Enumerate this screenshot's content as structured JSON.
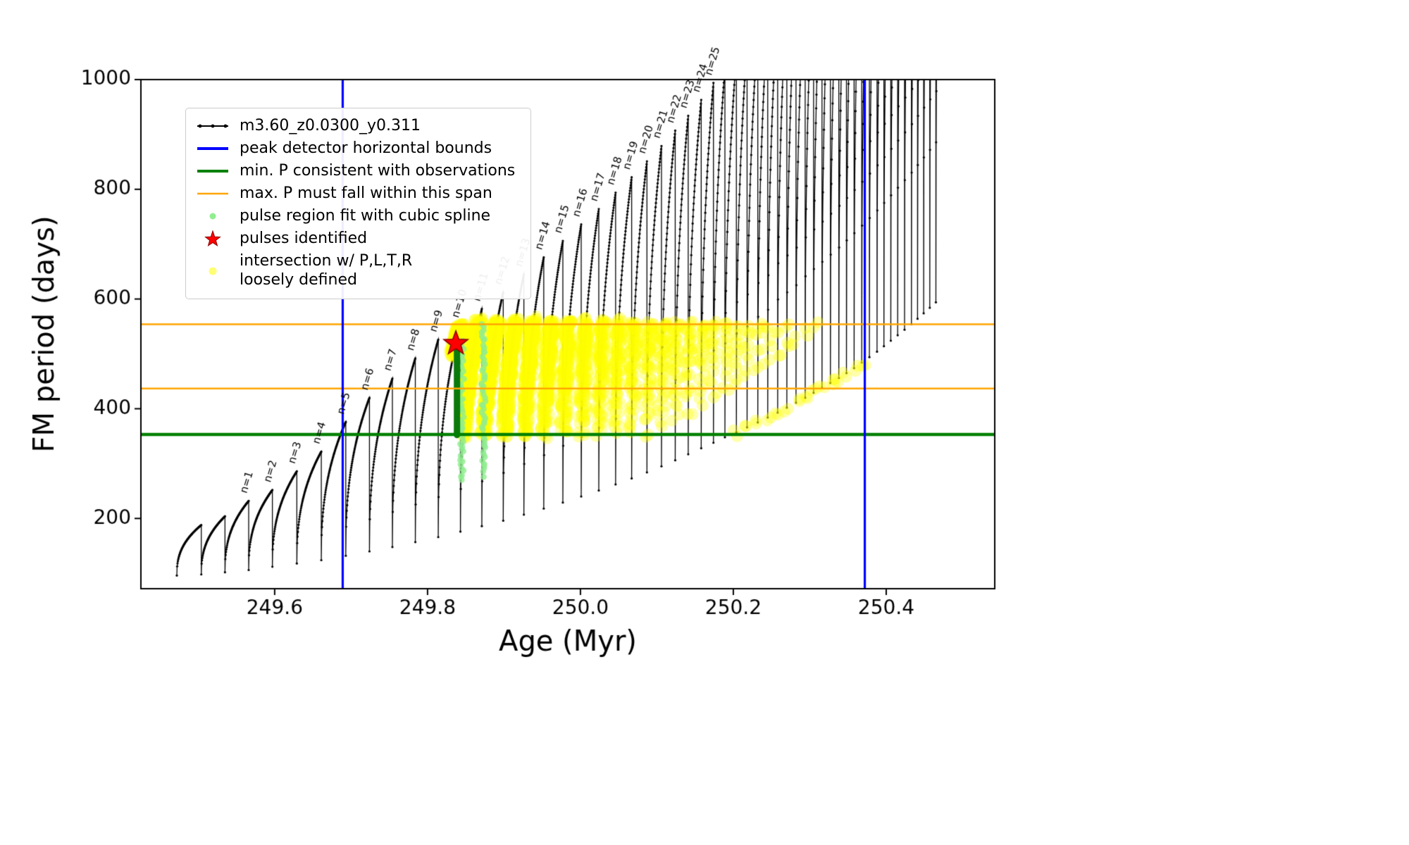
{
  "axes": {
    "xlabel": "Age (Myr)",
    "ylabel": "FM period (days)",
    "xlim": [
      249.425,
      250.542
    ],
    "ylim": [
      72,
      1000
    ],
    "xticks": [
      249.6,
      249.8,
      250.0,
      250.2,
      250.4
    ],
    "xtick_labels": [
      "249.6",
      "249.8",
      "250.0",
      "250.2",
      "250.4"
    ],
    "yticks": [
      200,
      400,
      600,
      800,
      1000
    ],
    "ytick_labels": [
      "200",
      "400",
      "600",
      "800",
      "1000"
    ]
  },
  "chart_data": {
    "type": "line",
    "series_label": "m3.60_z0.0300_y0.311",
    "series_color": "#000000",
    "rise_exponent": 0.4,
    "start": {
      "age": 249.472,
      "period": 96
    },
    "pulses_format": [
      "label",
      "age_of_peak_Myr",
      "peak_period_days",
      "trough_period_days"
    ],
    "pulses": [
      [
        "",
        249.504,
        188,
        96
      ],
      [
        "",
        249.535,
        204,
        98
      ],
      [
        "n=1",
        249.566,
        232,
        102
      ],
      [
        "n=2",
        249.597,
        252,
        106
      ],
      [
        "n=3",
        249.629,
        286,
        112
      ],
      [
        "n=4",
        249.661,
        322,
        118
      ],
      [
        "n=5",
        249.693,
        376,
        124
      ],
      [
        "n=6",
        249.724,
        420,
        132
      ],
      [
        "n=7",
        249.754,
        455,
        140
      ],
      [
        "n=8",
        249.784,
        492,
        148
      ],
      [
        "n=9",
        249.814,
        526,
        157
      ],
      [
        "n=10",
        249.843,
        552,
        166
      ],
      [
        "n=11",
        249.871,
        582,
        176
      ],
      [
        "n=12",
        249.899,
        612,
        186
      ],
      [
        "n=13",
        249.926,
        645,
        196
      ],
      [
        "n=14",
        249.952,
        676,
        207
      ],
      [
        "n=15",
        249.977,
        706,
        218
      ],
      [
        "n=16",
        250.001,
        736,
        229
      ],
      [
        "n=17",
        250.024,
        764,
        240
      ],
      [
        "n=18",
        250.046,
        794,
        251
      ],
      [
        "n=19",
        250.067,
        822,
        262
      ],
      [
        "n=20",
        250.087,
        851,
        273
      ],
      [
        "n=21",
        250.106,
        879,
        284
      ],
      [
        "n=22",
        250.124,
        907,
        295
      ],
      [
        "n=23",
        250.141,
        934,
        306
      ],
      [
        "n=24",
        250.158,
        963,
        317
      ],
      [
        "n=25",
        250.174,
        994,
        328
      ],
      [
        "",
        250.189,
        1020,
        338
      ],
      [
        "",
        250.204,
        1044,
        348
      ],
      [
        "",
        250.218,
        1068,
        357
      ],
      [
        "",
        250.232,
        1092,
        366
      ],
      [
        "",
        250.245,
        1116,
        375
      ],
      [
        "",
        250.258,
        1140,
        384
      ],
      [
        "",
        250.27,
        1164,
        393
      ],
      [
        "",
        250.282,
        1188,
        402
      ],
      [
        "",
        250.294,
        1212,
        411
      ],
      [
        "",
        250.305,
        1236,
        420
      ],
      [
        "",
        250.316,
        1260,
        429
      ],
      [
        "",
        250.327,
        1284,
        438
      ],
      [
        "",
        250.338,
        1308,
        447
      ],
      [
        "",
        250.348,
        1332,
        456
      ],
      [
        "",
        250.358,
        1356,
        465
      ],
      [
        "",
        250.368,
        1380,
        474
      ],
      [
        "",
        250.378,
        1404,
        484
      ],
      [
        "",
        250.388,
        1428,
        494
      ],
      [
        "",
        250.397,
        1452,
        504
      ],
      [
        "",
        250.406,
        1476,
        514
      ],
      [
        "",
        250.415,
        1500,
        524
      ],
      [
        "",
        250.424,
        1524,
        534
      ],
      [
        "",
        250.433,
        1548,
        544
      ],
      [
        "",
        250.441,
        1572,
        554
      ],
      [
        "",
        250.449,
        1596,
        564
      ],
      [
        "",
        250.457,
        1620,
        574
      ],
      [
        "",
        250.465,
        1644,
        584
      ],
      [
        "",
        250.473,
        1668,
        594
      ]
    ],
    "vlines_blue": {
      "color": "#0000ff",
      "xs": [
        249.689,
        250.372
      ]
    },
    "hline_green": {
      "color": "#008000",
      "y": 353
    },
    "hlines_orange": {
      "color": "#ffa500",
      "ys": [
        437,
        554
      ]
    },
    "green_segment": {
      "color": "#0b7a0b",
      "x": 249.8385,
      "y0": 352,
      "y1": 507
    },
    "spline_strips": {
      "color": "#90ee90",
      "strips": [
        {
          "x": 249.845,
          "y0": 270,
          "y1": 525
        },
        {
          "x": 249.873,
          "y0": 278,
          "y1": 556
        }
      ]
    },
    "star": {
      "x": 249.837,
      "y": 519,
      "color": "#ff0000",
      "edge": "#8b0000"
    },
    "yellow_region": {
      "color": "#ffff00",
      "x_range": [
        249.834,
        250.376
      ],
      "y_range": [
        350,
        560
      ]
    }
  },
  "legend": {
    "items": [
      {
        "marker": "line-dot",
        "color": "#000000",
        "label": "m3.60_z0.0300_y0.311"
      },
      {
        "marker": "line",
        "color": "#0000ff",
        "label": "peak detector horizontal bounds"
      },
      {
        "marker": "line",
        "color": "#008000",
        "label": "min. P consistent with observations"
      },
      {
        "marker": "line",
        "color": "#ffa500",
        "label": "max. P must fall within this span"
      },
      {
        "marker": "dot",
        "color": "#90ee90",
        "label": "pulse region fit with cubic spline"
      },
      {
        "marker": "star",
        "color": "#ff0000",
        "label": "pulses identified"
      },
      {
        "marker": "dot-faint",
        "color": "#ffff00",
        "label": "intersection w/ P,L,T,R",
        "label2": "loosely defined"
      }
    ]
  }
}
